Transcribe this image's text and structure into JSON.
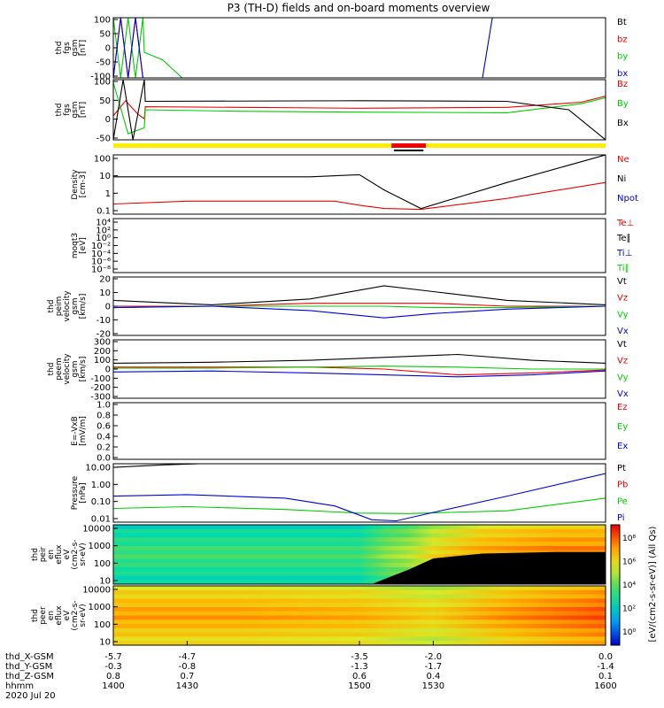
{
  "title": "P3 (TH-D) fields and on-board moments overview",
  "colors": {
    "black": "#000000",
    "red": "#ee0000",
    "green": "#00cc00",
    "blue": "#0000dd",
    "yellow": "#ffee00"
  },
  "chart_data": [
    {
      "id": "fgs_gsm",
      "type": "line",
      "ylabel": [
        "thd",
        "fgs",
        "gsm",
        "[nT]"
      ],
      "ylim": [
        -100,
        100
      ],
      "yticks": [
        "100",
        "50",
        "0",
        "-50",
        "-100"
      ],
      "series": [
        {
          "name": "Bt",
          "color": "black",
          "x": [
            1400,
            1402,
            1404,
            1406,
            1408,
            1410,
            1412
          ],
          "y": [
            100,
            100,
            100,
            100,
            100,
            100,
            100
          ]
        },
        {
          "name": "bz",
          "color": "red",
          "x": [
            1400,
            1403,
            1406,
            1409,
            1412
          ],
          "y": [
            -100,
            100,
            -100,
            100,
            -100
          ]
        },
        {
          "name": "by",
          "color": "green",
          "x": [
            1400,
            1403,
            1406,
            1409,
            1412,
            1412.6,
            1420,
            1428
          ],
          "y": [
            100,
            -100,
            100,
            -100,
            100,
            -15,
            -40,
            -100
          ]
        },
        {
          "name": "bx",
          "color": "blue",
          "x": [
            1400,
            1403,
            1406,
            1409,
            1412,
            1550,
            1554
          ],
          "y": [
            -100,
            100,
            -100,
            100,
            -100,
            -100,
            100
          ]
        }
      ]
    },
    {
      "id": "fgs_gsm_zoom",
      "type": "line",
      "ylabel": [
        "thd",
        "fgs",
        "gsm",
        "[nT]"
      ],
      "ylim": [
        -100,
        100
      ],
      "yticks": [
        "100",
        "50",
        "0",
        "-50"
      ],
      "series": [
        {
          "name": "Bz",
          "color": "red",
          "x": [
            1400,
            1405,
            1410,
            1412.6,
            1413,
            1500,
            1560,
            1590,
            1600
          ],
          "y": [
            -20,
            30,
            -15,
            -30,
            10,
            5,
            8,
            25,
            45
          ]
        },
        {
          "name": "By",
          "color": "green",
          "x": [
            1400,
            1406,
            1412.6,
            1413,
            1450,
            1500,
            1560,
            1590,
            1600
          ],
          "y": [
            90,
            -80,
            -60,
            0,
            -5,
            -8,
            -10,
            20,
            40
          ]
        },
        {
          "name": "Bx",
          "color": "black",
          "x": [
            1400,
            1404,
            1408,
            1412.6,
            1413,
            1500,
            1560,
            1585,
            1600
          ],
          "y": [
            -100,
            100,
            -100,
            100,
            28,
            30,
            28,
            0,
            -100
          ]
        }
      ]
    },
    {
      "id": "density",
      "type": "line",
      "ylabel": [
        "Density",
        "[cm-3]"
      ],
      "ylog": true,
      "ylim": [
        0.1,
        150
      ],
      "yticks": [
        "100",
        "10",
        "1",
        "0.1"
      ],
      "series": [
        {
          "name": "Ne",
          "color": "red",
          "x": [
            1400,
            1430,
            1490,
            1500,
            1510,
            1525,
            1560,
            1600
          ],
          "y": [
            0.35,
            0.5,
            0.5,
            0.3,
            0.2,
            0.18,
            0.7,
            5
          ]
        },
        {
          "name": "Ni",
          "color": "black",
          "x": [
            1400,
            1430,
            1480,
            1500,
            1510,
            1525,
            1560,
            1600
          ],
          "y": [
            10,
            10,
            10,
            13,
            2,
            0.2,
            5,
            150
          ]
        },
        {
          "name": "Npot",
          "color": "blue",
          "x": [],
          "y": []
        }
      ]
    },
    {
      "id": "temperature",
      "type": "line",
      "ylabel": [
        "moqt3",
        "[eV]"
      ],
      "ylog": true,
      "ylim": [
        1e-08,
        10000
      ],
      "yticks": [
        "10⁴",
        "10²",
        "10⁰",
        "10⁻²",
        "10⁻⁴",
        "10⁻⁶",
        "10⁻⁸"
      ],
      "series": [
        {
          "name": "Te⊥",
          "color": "red",
          "x": [],
          "y": []
        },
        {
          "name": "Te∥",
          "color": "black",
          "x": [],
          "y": []
        },
        {
          "name": "Ti⊥",
          "color": "blue",
          "x": [],
          "y": []
        },
        {
          "name": "Ti∥",
          "color": "green",
          "x": [],
          "y": []
        }
      ]
    },
    {
      "id": "peim_velocity",
      "type": "line",
      "ylabel": [
        "thd",
        "peim",
        "velocity",
        "gsm",
        "[km/s]"
      ],
      "ylim": [
        -20,
        20
      ],
      "yticks": [
        "20",
        "10",
        "0",
        "-10",
        "-20"
      ],
      "series": [
        {
          "name": "Vt",
          "color": "black",
          "x": [
            1400,
            1440,
            1480,
            1510,
            1530,
            1560,
            1600
          ],
          "y": [
            4,
            1,
            5,
            14,
            10,
            4,
            1
          ]
        },
        {
          "name": "Vz",
          "color": "red",
          "x": [
            1400,
            1440,
            1480,
            1510,
            1530,
            1560,
            1600
          ],
          "y": [
            0,
            0,
            2,
            2,
            2,
            0,
            0
          ]
        },
        {
          "name": "Vy",
          "color": "green",
          "x": [
            1400,
            1440,
            1480,
            1510,
            1530,
            1560,
            1600
          ],
          "y": [
            -1,
            0,
            0,
            0,
            -1,
            -1,
            0
          ]
        },
        {
          "name": "Vx",
          "color": "blue",
          "x": [
            1400,
            1440,
            1480,
            1510,
            1530,
            1560,
            1600
          ],
          "y": [
            -1,
            0,
            -3,
            -8,
            -5,
            -2,
            0
          ]
        }
      ]
    },
    {
      "id": "peem_velocity",
      "type": "line",
      "ylabel": [
        "thd",
        "peem",
        "velocity",
        "gsm",
        "[km/s]"
      ],
      "ylim": [
        -300,
        300
      ],
      "yticks": [
        "300",
        "200",
        "100",
        "0",
        "-100",
        "-200",
        "-300"
      ],
      "series": [
        {
          "name": "Vt",
          "color": "black",
          "x": [
            1400,
            1440,
            1480,
            1510,
            1540,
            1570,
            1600
          ],
          "y": [
            60,
            70,
            90,
            120,
            150,
            90,
            60
          ]
        },
        {
          "name": "Vz",
          "color": "red",
          "x": [
            1400,
            1440,
            1480,
            1510,
            1540,
            1570,
            1600
          ],
          "y": [
            20,
            20,
            20,
            0,
            -60,
            -40,
            -10
          ]
        },
        {
          "name": "Vy",
          "color": "green",
          "x": [
            1400,
            1440,
            1480,
            1510,
            1540,
            1570,
            1600
          ],
          "y": [
            10,
            10,
            20,
            30,
            20,
            0,
            0
          ]
        },
        {
          "name": "Vx",
          "color": "blue",
          "x": [
            1400,
            1440,
            1480,
            1510,
            1540,
            1570,
            1600
          ],
          "y": [
            -30,
            -20,
            -40,
            -60,
            -80,
            -60,
            -20
          ]
        }
      ]
    },
    {
      "id": "efield",
      "type": "line",
      "ylabel": [
        "E=-VxB",
        "[mV/m]"
      ],
      "ylim": [
        0,
        1
      ],
      "yticks": [
        "1.0",
        "0.8",
        "0.6",
        "0.4",
        "0.2",
        "0.0"
      ],
      "series": [
        {
          "name": "Ez",
          "color": "red",
          "x": [],
          "y": []
        },
        {
          "name": "Ey",
          "color": "green",
          "x": [],
          "y": []
        },
        {
          "name": "Ex",
          "color": "blue",
          "x": [],
          "y": []
        }
      ]
    },
    {
      "id": "pressure",
      "type": "line",
      "ylabel": [
        "Pressure",
        "[nPa]"
      ],
      "ylog": true,
      "ylim": [
        0.005,
        20
      ],
      "yticks": [
        "10.00",
        "1.00",
        "0.10",
        "0.01"
      ],
      "series": [
        {
          "name": "Pt",
          "color": "black",
          "x": [
            1400,
            1420,
            1435,
            1450
          ],
          "y": [
            12,
            17,
            20,
            25
          ]
        },
        {
          "name": "Pb",
          "color": "red",
          "x": [],
          "y": []
        },
        {
          "name": "Pe",
          "color": "green",
          "x": [
            1400,
            1430,
            1470,
            1500,
            1520,
            1560,
            1600
          ],
          "y": [
            0.035,
            0.045,
            0.03,
            0.018,
            0.017,
            0.025,
            0.15
          ]
        },
        {
          "name": "Pi",
          "color": "blue",
          "x": [
            1400,
            1430,
            1470,
            1490,
            1505,
            1515,
            1530,
            1560,
            1600
          ],
          "y": [
            0.2,
            0.25,
            0.15,
            0.05,
            0.007,
            0.006,
            0.02,
            0.2,
            5
          ]
        }
      ]
    },
    {
      "id": "peir_spectrogram",
      "type": "heatmap",
      "ylabel": [
        "thd",
        "peir",
        "en",
        "eflux",
        "eV",
        "(cm2-s-",
        "sr-eV)"
      ],
      "ylog": true,
      "ylim": [
        5,
        25000
      ],
      "yticks": [
        "10000",
        "1000",
        "100",
        "10"
      ],
      "x": [
        1400,
        1450,
        1500,
        1505,
        1510,
        1520,
        1530,
        1550,
        1580,
        1600
      ],
      "level": [
        0.45,
        0.45,
        0.45,
        0.5,
        0.55,
        0.6,
        0.7,
        0.8,
        0.85,
        0.85
      ],
      "lowcut_energy": [
        0,
        0,
        0,
        0,
        10,
        40,
        200,
        400,
        500,
        500
      ]
    },
    {
      "id": "peer_spectrogram",
      "type": "heatmap",
      "ylabel": [
        "thd",
        "peer",
        "en",
        "eflux",
        "eV",
        "(cm2-s-",
        "sr-eV)"
      ],
      "ylog": true,
      "ylim": [
        5,
        25000
      ],
      "yticks": [
        "10000",
        "1000",
        "100",
        "10"
      ],
      "x": [
        1400,
        1450,
        1500,
        1530,
        1560,
        1600
      ],
      "level": [
        0.8,
        0.8,
        0.78,
        0.72,
        0.82,
        0.9
      ]
    }
  ],
  "colorbar": {
    "ticks": [
      "10⁸",
      "10⁶",
      "10⁴",
      "10²",
      "10⁰"
    ],
    "label": "[eV/(cm2-s-sr-eV)] (All Qs)"
  },
  "xaxis": {
    "range": [
      1400,
      1600
    ],
    "rows": [
      {
        "label": "thd_X-GSM",
        "values": [
          "-5.7",
          "-4.7",
          "-3.5",
          "-2.0",
          "0.0"
        ]
      },
      {
        "label": "thd_Y-GSM",
        "values": [
          "-0.3",
          "-0.8",
          "-1.3",
          "-1.7",
          "-1.4"
        ]
      },
      {
        "label": "thd_Z-GSM",
        "values": [
          "0.8",
          "0.7",
          "0.6",
          "0.4",
          "0.1"
        ]
      },
      {
        "label": "hhmm",
        "values": [
          "1400",
          "1430",
          "1500",
          "1530",
          "1600"
        ]
      }
    ],
    "date": "2020 Jul 20"
  }
}
